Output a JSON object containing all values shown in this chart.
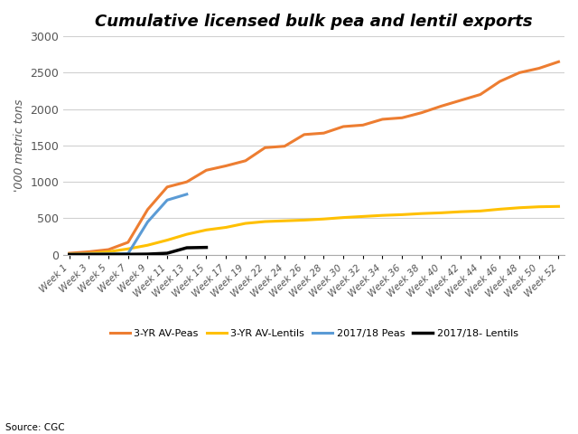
{
  "title": "Cumulative licensed bulk pea and lentil exports",
  "ylabel": "'000 metric tons",
  "source": "Source: CGC",
  "ylim": [
    0,
    3000
  ],
  "weeks": [
    "Week 1",
    "Week 3",
    "Week 5",
    "Week 7",
    "Week 9",
    "Week 11",
    "Week 13",
    "Week 15",
    "Week 17",
    "Week 19",
    "Week 22",
    "Week 24",
    "Week 26",
    "Week 28",
    "Week 30",
    "Week 32",
    "Week 34",
    "Week 36",
    "Week 38",
    "Week 40",
    "Week 42",
    "Week 44",
    "Week 46",
    "Week 48",
    "Week 50",
    "Week 52"
  ],
  "peas_2017": [
    5,
    8,
    10,
    15,
    450,
    750,
    830,
    null,
    null,
    null,
    null,
    null,
    null,
    null,
    null,
    null,
    null,
    null,
    null,
    null,
    null,
    null,
    null,
    null,
    null,
    null
  ],
  "peas_3yr": [
    20,
    40,
    70,
    170,
    620,
    930,
    1000,
    1160,
    1220,
    1290,
    1470,
    1490,
    1650,
    1670,
    1760,
    1780,
    1860,
    1880,
    1950,
    2040,
    2120,
    2200,
    2380,
    2500,
    2560,
    2650
  ],
  "lentils_2017": [
    2,
    3,
    4,
    5,
    8,
    20,
    95,
    100,
    null,
    null,
    null,
    null,
    null,
    null,
    null,
    null,
    null,
    null,
    null,
    null,
    null,
    null,
    null,
    null,
    null,
    null
  ],
  "lentils_3yr": [
    8,
    18,
    40,
    80,
    130,
    200,
    280,
    340,
    375,
    430,
    455,
    465,
    475,
    490,
    510,
    525,
    540,
    550,
    565,
    575,
    590,
    600,
    625,
    645,
    658,
    663
  ],
  "colors": {
    "peas_2017": "#5B9BD5",
    "peas_3yr": "#ED7D31",
    "lentils_2017": "#000000",
    "lentils_3yr": "#FFC000"
  },
  "legend_labels": [
    "2017/18 Peas",
    "3-YR AV-Peas",
    "2017/18- Lentils",
    "3-YR AV-Lentils"
  ],
  "yticks": [
    0,
    500,
    1000,
    1500,
    2000,
    2500,
    3000
  ]
}
